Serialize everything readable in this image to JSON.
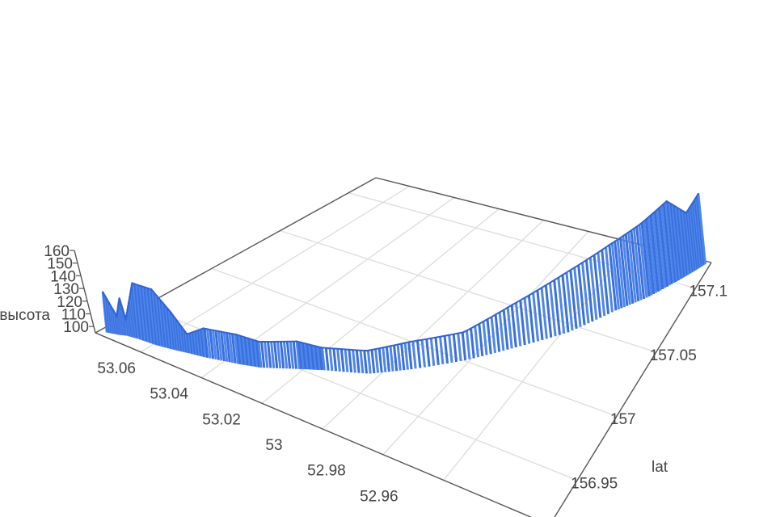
{
  "chart_data": {
    "type": "3d-ribbon",
    "zlabel": "высота",
    "ylabel": "lat",
    "xlabel": "",
    "x_ticks": [
      "53.06",
      "53.04",
      "53.02",
      "53",
      "52.98",
      "52.96"
    ],
    "y_ticks": [
      "156.95",
      "157",
      "157.05",
      "157.1"
    ],
    "z_ticks": [
      "100",
      "110",
      "120",
      "130",
      "140",
      "150",
      "160"
    ],
    "xlim": [
      53.075,
      52.925
    ],
    "ylim": [
      156.915,
      157.12
    ],
    "zlim": [
      95,
      160
    ],
    "grid": true,
    "color": "#3a6fdc",
    "points": [
      {
        "x": 53.073,
        "y": 156.919,
        "z": 128
      },
      {
        "x": 53.07,
        "y": 156.921,
        "z": 110
      },
      {
        "x": 53.069,
        "y": 156.922,
        "z": 125
      },
      {
        "x": 53.068,
        "y": 156.923,
        "z": 108
      },
      {
        "x": 53.065,
        "y": 156.924,
        "z": 140
      },
      {
        "x": 53.059,
        "y": 156.925,
        "z": 140
      },
      {
        "x": 53.054,
        "y": 156.927,
        "z": 125
      },
      {
        "x": 53.05,
        "y": 156.929,
        "z": 110
      },
      {
        "x": 53.045,
        "y": 156.931,
        "z": 118
      },
      {
        "x": 53.036,
        "y": 156.936,
        "z": 118
      },
      {
        "x": 53.03,
        "y": 156.94,
        "z": 115
      },
      {
        "x": 53.021,
        "y": 156.95,
        "z": 116
      },
      {
        "x": 53.015,
        "y": 156.956,
        "z": 112
      },
      {
        "x": 53.003,
        "y": 156.966,
        "z": 112
      },
      {
        "x": 52.993,
        "y": 156.981,
        "z": 115
      },
      {
        "x": 52.981,
        "y": 157.001,
        "z": 115
      },
      {
        "x": 52.97,
        "y": 157.022,
        "z": 125
      },
      {
        "x": 52.958,
        "y": 157.044,
        "z": 135
      },
      {
        "x": 52.948,
        "y": 157.069,
        "z": 140
      },
      {
        "x": 52.94,
        "y": 157.085,
        "z": 145
      },
      {
        "x": 52.934,
        "y": 157.1,
        "z": 150
      },
      {
        "x": 52.93,
        "y": 157.11,
        "z": 135
      },
      {
        "x": 52.927,
        "y": 157.118,
        "z": 142
      }
    ]
  }
}
